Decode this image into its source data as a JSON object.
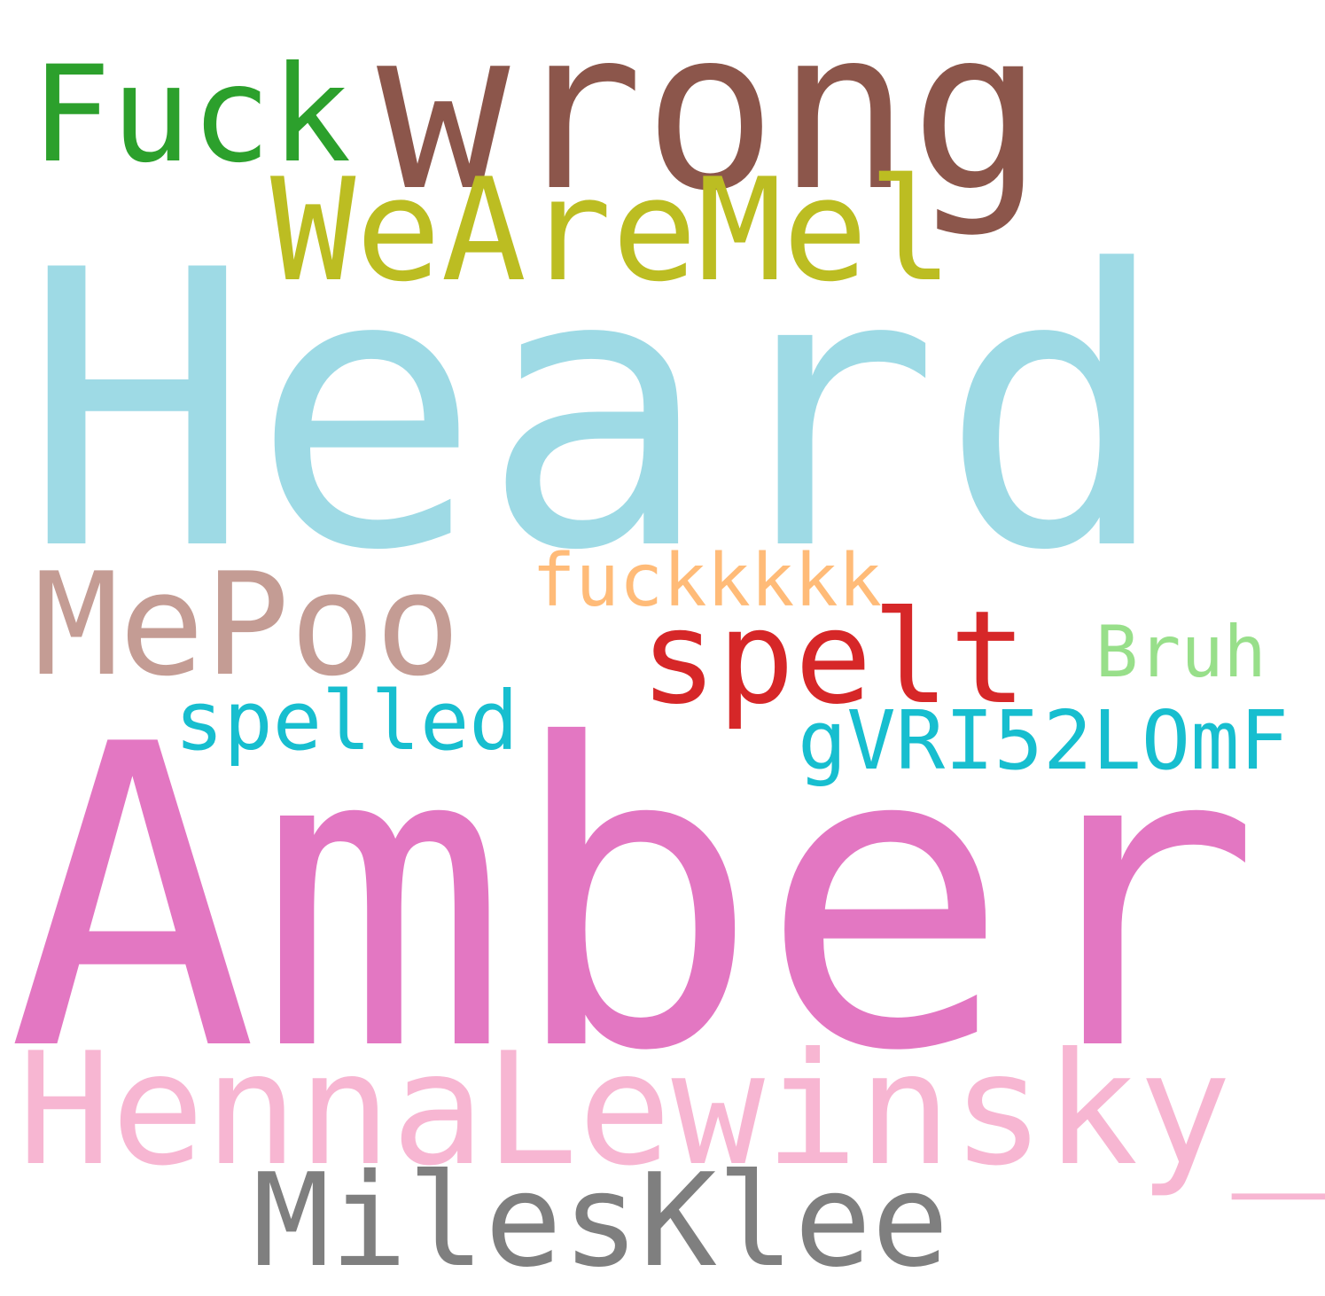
{
  "words": [
    {
      "id": "w-heard",
      "text": "Heard",
      "color": "#9edae5"
    },
    {
      "id": "w-amber",
      "text": "Amber",
      "color": "#e377c2"
    },
    {
      "id": "w-wrong",
      "text": "wrong",
      "color": "#8c564b"
    },
    {
      "id": "w-henna",
      "text": "HennaLewinsky_",
      "color": "#f7b6d2"
    },
    {
      "id": "w-weare",
      "text": "WeAreMel",
      "color": "#bcbd22"
    },
    {
      "id": "w-mepoo",
      "text": "MePoo",
      "color": "#c49c94"
    },
    {
      "id": "w-fuck",
      "text": "Fuck",
      "color": "#2ca02c"
    },
    {
      "id": "w-spelt",
      "text": "spelt",
      "color": "#d62728"
    },
    {
      "id": "w-miles",
      "text": "MilesKlee",
      "color": "#7f7f7f"
    },
    {
      "id": "w-gvri",
      "text": "gVRI52LOmF",
      "color": "#17becf"
    },
    {
      "id": "w-spelled",
      "text": "spelled",
      "color": "#17becf"
    },
    {
      "id": "w-fuckk",
      "text": "fuckkkkk",
      "color": "#ffbb78"
    },
    {
      "id": "w-bruh",
      "text": "Bruh",
      "color": "#98df8a"
    }
  ]
}
